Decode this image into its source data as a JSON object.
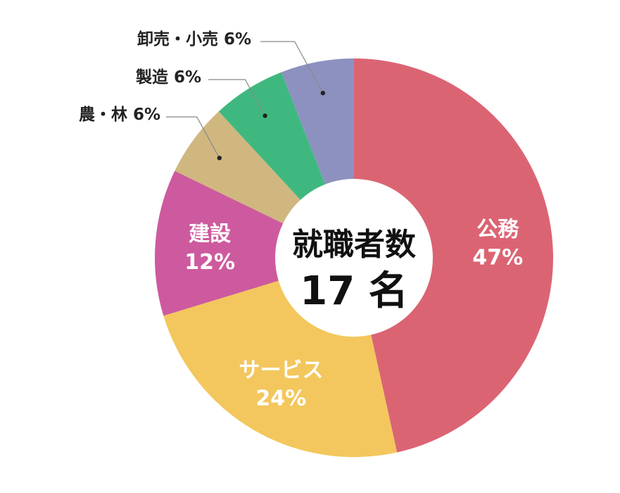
{
  "chart_data": {
    "type": "pie",
    "center_title": "就職者数",
    "center_count": "17 名",
    "slices": [
      {
        "name": "公務",
        "value": 47,
        "value_label": "47%",
        "color": "#db6473",
        "label_position": "inside"
      },
      {
        "name": "サービス",
        "value": 24,
        "value_label": "24%",
        "color": "#f3c75d",
        "label_position": "inside"
      },
      {
        "name": "建設",
        "value": 12,
        "value_label": "12%",
        "color": "#cd5a9e",
        "label_position": "inside"
      },
      {
        "name": "農・林",
        "value": 6,
        "value_label": "6%",
        "color": "#d0b77f",
        "label_position": "outside"
      },
      {
        "name": "製造",
        "value": 6,
        "value_label": "6%",
        "color": "#3fb87f",
        "label_position": "outside"
      },
      {
        "name": "卸売・小売",
        "value": 6,
        "value_label": "6%",
        "color": "#8d91bf",
        "label_position": "outside"
      }
    ]
  }
}
